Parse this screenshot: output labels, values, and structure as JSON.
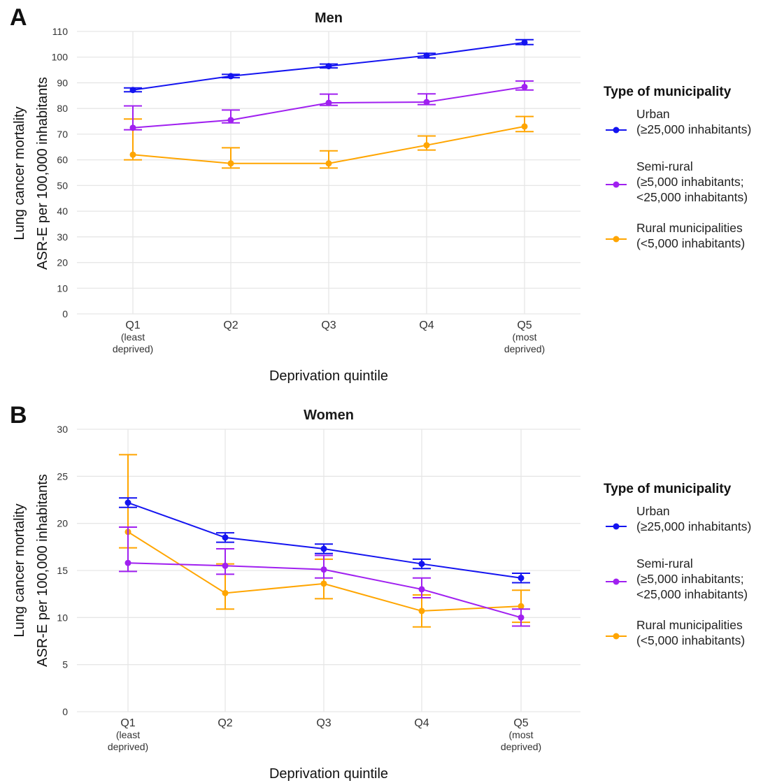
{
  "chart_data": [
    {
      "type": "line",
      "panel_letter": "A",
      "title": "Men",
      "xlabel": "Deprivation quintile",
      "ylabel": [
        "Lung cancer mortality",
        "ASR-E per 100,000 inhabitants"
      ],
      "categories": [
        [
          "Q1",
          "(least",
          "deprived)"
        ],
        [
          "Q2"
        ],
        [
          "Q3"
        ],
        [
          "Q4"
        ],
        [
          "Q5",
          "(most",
          "deprived)"
        ]
      ],
      "ylim": [
        0,
        110
      ],
      "yticks": [
        0,
        10,
        20,
        30,
        40,
        50,
        60,
        70,
        80,
        90,
        100,
        110
      ],
      "grid": true,
      "error_bars": true,
      "legend_title": "Type of municipality",
      "legend_position": "right",
      "series": [
        {
          "name": [
            "Urban",
            "(≥25,000 inhabitants)"
          ],
          "color": "#1414f0",
          "values": [
            87.2,
            92.6,
            96.5,
            100.6,
            105.7
          ],
          "lower": [
            86.5,
            92.0,
            95.8,
            99.7,
            104.9
          ],
          "upper": [
            88.0,
            93.3,
            97.3,
            101.5,
            106.8
          ]
        },
        {
          "name": [
            "Semi-rural",
            "(≥5,000 inhabitants;",
            "<25,000 inhabitants)"
          ],
          "color": "#a020f0",
          "values": [
            72.5,
            75.5,
            82.2,
            82.5,
            88.4
          ],
          "lower": [
            71.7,
            74.4,
            81.2,
            81.5,
            87.2
          ],
          "upper": [
            81.0,
            79.4,
            85.6,
            85.7,
            90.7
          ]
        },
        {
          "name": [
            "Rural municipalities",
            "(<5,000 inhabitants)"
          ],
          "color": "#ffa500",
          "values": [
            62.0,
            58.6,
            58.6,
            65.7,
            73.0
          ],
          "lower": [
            60.0,
            56.8,
            56.8,
            63.8,
            71.0
          ],
          "upper": [
            75.9,
            64.7,
            63.5,
            69.3,
            76.9
          ]
        }
      ]
    },
    {
      "type": "line",
      "panel_letter": "B",
      "title": "Women",
      "xlabel": "Deprivation quintile",
      "ylabel": [
        "Lung cancer mortality",
        "ASR-E per 100,000 inhabitants"
      ],
      "categories": [
        [
          "Q1",
          "(least",
          "deprived)"
        ],
        [
          "Q2"
        ],
        [
          "Q3"
        ],
        [
          "Q4"
        ],
        [
          "Q5",
          "(most",
          "deprived)"
        ]
      ],
      "ylim": [
        0,
        30
      ],
      "yticks": [
        0,
        5,
        10,
        15,
        20,
        25,
        30
      ],
      "grid": true,
      "error_bars": true,
      "legend_title": "Type of municipality",
      "legend_position": "right",
      "series": [
        {
          "name": [
            "Urban",
            "(≥25,000 inhabitants)"
          ],
          "color": "#1414f0",
          "values": [
            22.2,
            18.5,
            17.3,
            15.7,
            14.2
          ],
          "lower": [
            21.7,
            18.0,
            16.8,
            15.2,
            13.7
          ],
          "upper": [
            22.7,
            19.0,
            17.8,
            16.2,
            14.7
          ]
        },
        {
          "name": [
            "Semi-rural",
            "(≥5,000 inhabitants;",
            "<25,000 inhabitants)"
          ],
          "color": "#a020f0",
          "values": [
            15.8,
            15.5,
            15.1,
            13.0,
            10.0
          ],
          "lower": [
            14.9,
            14.6,
            14.2,
            12.1,
            9.1
          ],
          "upper": [
            19.6,
            17.3,
            16.6,
            14.2,
            10.9
          ]
        },
        {
          "name": [
            "Rural municipalities",
            "(<5,000 inhabitants)"
          ],
          "color": "#ffa500",
          "values": [
            19.1,
            12.6,
            13.6,
            10.7,
            11.2
          ],
          "lower": [
            17.4,
            10.9,
            12.0,
            9.0,
            9.5
          ],
          "upper": [
            27.3,
            15.7,
            16.2,
            12.4,
            12.9
          ]
        }
      ]
    }
  ]
}
